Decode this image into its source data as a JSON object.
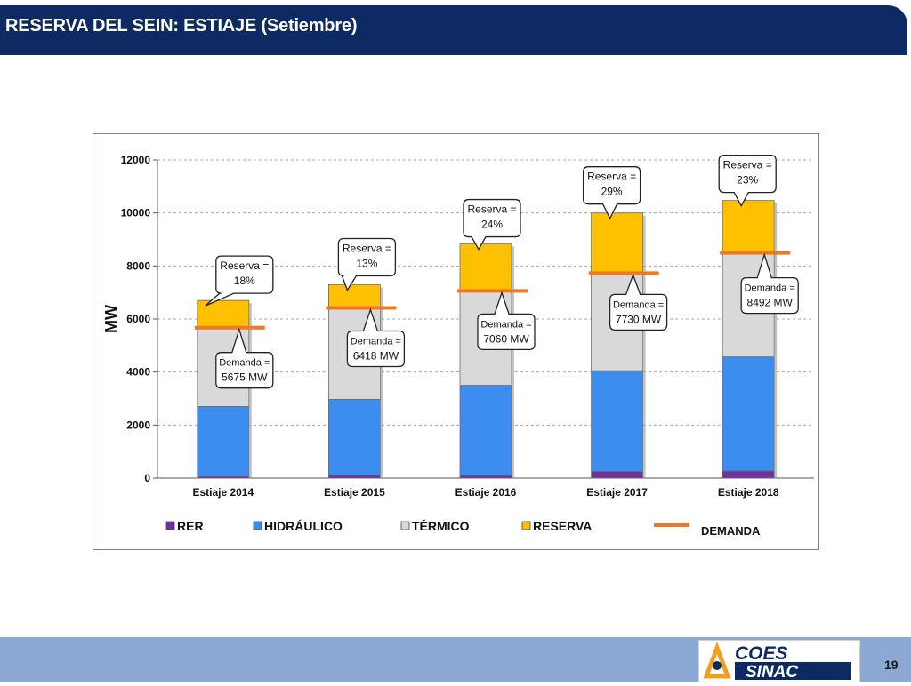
{
  "header": {
    "title": "RESERVA DEL SEIN: ESTIAJE (Setiembre)"
  },
  "footer": {
    "page_number": "19",
    "logo_line1": "COES",
    "logo_line2": "SINAC"
  },
  "colors": {
    "header": "#0d2a62",
    "footer": "#8ba9d4",
    "rer": "#7030a0",
    "hidraulico": "#3b8ef0",
    "termico": "#d9d9d9",
    "reserva": "#ffc000",
    "demanda": "#f07820"
  },
  "chart_data": {
    "type": "bar",
    "stacked": true,
    "ylabel": "MW",
    "xlabel": "",
    "ylim": [
      0,
      12000
    ],
    "yticks": [
      0,
      2000,
      4000,
      6000,
      8000,
      10000,
      12000
    ],
    "grid": true,
    "legend_position": "bottom",
    "categories": [
      "Estiaje 2014",
      "Estiaje 2015",
      "Estiaje 2016",
      "Estiaje 2017",
      "Estiaje 2018"
    ],
    "series": [
      {
        "name": "RER",
        "values": [
          60,
          110,
          100,
          250,
          270
        ]
      },
      {
        "name": "HIDRÁULICO",
        "values": [
          2640,
          2860,
          3400,
          3800,
          4300
        ]
      },
      {
        "name": "TÉRMICO",
        "values": [
          3000,
          3450,
          3600,
          3700,
          3950
        ]
      },
      {
        "name": "RESERVA",
        "values": [
          1000,
          870,
          1730,
          2250,
          1950
        ]
      }
    ],
    "demand": {
      "name": "DEMANDA",
      "values": [
        5675,
        6418,
        7060,
        7730,
        8492
      ]
    },
    "reserve_callouts": [
      [
        "Reserva =",
        "18%"
      ],
      [
        "Reserva =",
        "13%"
      ],
      [
        "Reserva =",
        "24%"
      ],
      [
        "Reserva =",
        "29%"
      ],
      [
        "Reserva =",
        "23%"
      ]
    ],
    "demand_callouts": [
      [
        "Demanda =",
        "5675 MW"
      ],
      [
        "Demanda =",
        "6418 MW"
      ],
      [
        "Demanda =",
        "7060 MW"
      ],
      [
        "Demanda =",
        "7730 MW"
      ],
      [
        "Demanda =",
        "8492 MW"
      ]
    ]
  }
}
